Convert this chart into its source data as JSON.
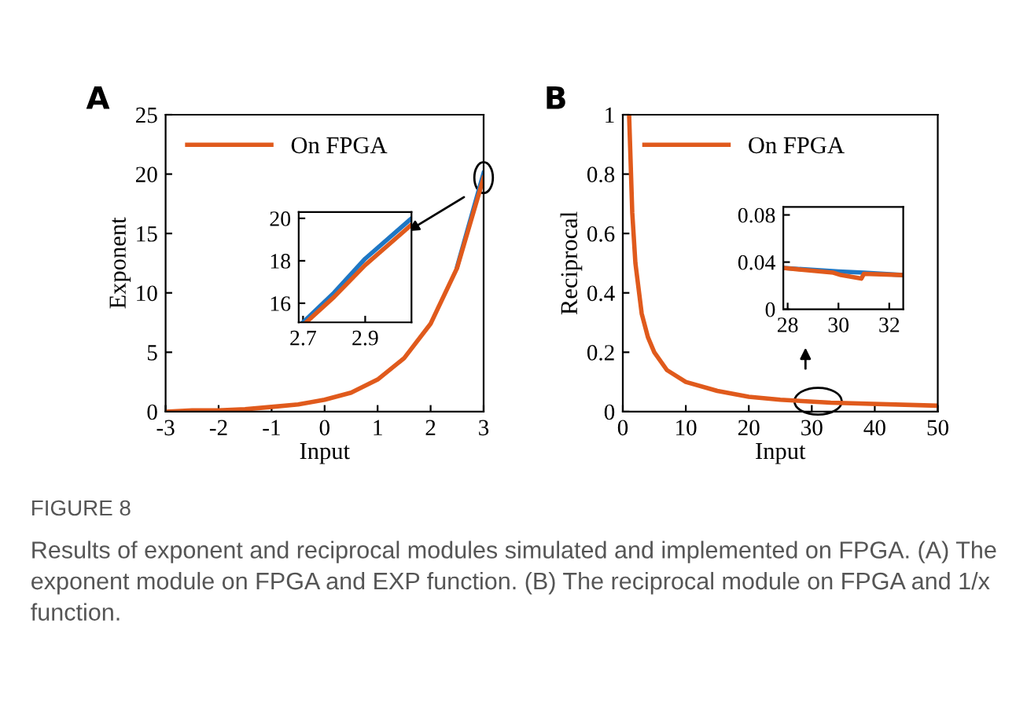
{
  "chart_data": [
    {
      "type": "line",
      "title": "A",
      "xlabel": "Input",
      "ylabel": "Exponent",
      "xlim": [
        -3,
        3
      ],
      "ylim": [
        0,
        25
      ],
      "xticks": [
        -3,
        -2,
        -1,
        0,
        1,
        2,
        3
      ],
      "yticks": [
        0,
        5,
        10,
        15,
        20,
        25
      ],
      "legend": "top left",
      "grid": false,
      "series": [
        {
          "color": "#1f77c4",
          "x": [
            2.5,
            3
          ],
          "values": [
            12.2,
            20.1
          ]
        },
        {
          "name": "On FPGA",
          "color": "#e05a1c",
          "x": [
            -3,
            -2.5,
            -2,
            -1.5,
            -1,
            -0.5,
            0,
            0.5,
            1,
            1.5,
            2,
            2.5,
            3
          ],
          "values": [
            0,
            0.1,
            0.1,
            0.2,
            0.4,
            0.6,
            1.0,
            1.6,
            2.7,
            4.5,
            7.4,
            12.1,
            19.7
          ]
        }
      ],
      "annotations": [
        "FIGURE 8",
        "Results of exponent and reciprocal modules simulated and implemented on FPGA. (A) The exponent module on FPGA and EXP function. (B) The reciprocal module on FPGA and 1/x function."
      ]
    },
    {
      "type": "line",
      "xlim": [
        2.686,
        3.049
      ],
      "ylim": [
        15.1,
        20.3
      ],
      "xticks": [
        2.7,
        2.9
      ],
      "yticks": [
        16,
        18,
        20
      ],
      "grid": false,
      "series": [
        {
          "color": "#1f77c4",
          "x": [
            2.7,
            2.8,
            2.9,
            3.049
          ],
          "values": [
            15.1,
            16.5,
            18.1,
            20.0
          ]
        },
        {
          "color": "#e05a1c",
          "x": [
            2.71,
            2.8,
            2.9,
            3.049
          ],
          "values": [
            15.1,
            16.3,
            17.8,
            19.7
          ]
        }
      ]
    },
    {
      "type": "line",
      "title": "B",
      "xlabel": "Input",
      "ylabel": "Reciprocal",
      "xlim": [
        0,
        50
      ],
      "ylim": [
        0,
        1
      ],
      "xticks": [
        0,
        10,
        20,
        30,
        40,
        50
      ],
      "yticks": [
        0,
        0.2,
        0.4,
        0.6,
        0.8,
        1
      ],
      "legend": "top left",
      "grid": false,
      "series": [
        {
          "name": "On FPGA",
          "color": "#e05a1c",
          "x": [
            1,
            1.5,
            2,
            3,
            4,
            5,
            7,
            10,
            15,
            20,
            25,
            33,
            50
          ],
          "values": [
            1,
            0.67,
            0.5,
            0.33,
            0.25,
            0.2,
            0.14,
            0.1,
            0.07,
            0.05,
            0.04,
            0.03,
            0.02
          ]
        }
      ]
    },
    {
      "type": "line",
      "xlim": [
        27.83,
        32.55
      ],
      "ylim": [
        0,
        0.0868
      ],
      "xticks": [
        28,
        30,
        32
      ],
      "yticks": [
        0,
        0.04,
        0.08
      ],
      "grid": false,
      "series": [
        {
          "color": "#1f77c4",
          "x": [
            27.83,
            30,
            31,
            32.55
          ],
          "values": [
            0.035,
            0.032,
            0.031,
            0.029
          ]
        },
        {
          "color": "#e05a1c",
          "x": [
            27.83,
            29.8,
            30.1,
            30.9,
            31,
            32.55
          ],
          "values": [
            0.035,
            0.031,
            0.029,
            0.026,
            0.03,
            0.029
          ]
        }
      ]
    }
  ]
}
